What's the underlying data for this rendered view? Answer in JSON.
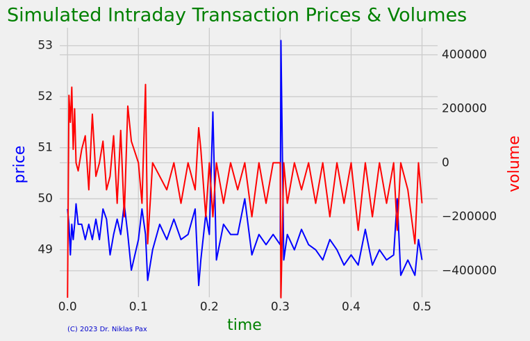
{
  "chart_data": {
    "type": "line",
    "title": "Simulated Intraday Transaction Prices & Volumes",
    "xlabel": "time",
    "ylabel": "price",
    "y2label": "volume",
    "footnote": "(C) 2023 Dr. Niklas Pax",
    "grid": true,
    "x": [
      0.0,
      0.002,
      0.004,
      0.006,
      0.008,
      0.01,
      0.012,
      0.015,
      0.02,
      0.025,
      0.03,
      0.035,
      0.04,
      0.045,
      0.05,
      0.055,
      0.06,
      0.065,
      0.07,
      0.075,
      0.08,
      0.085,
      0.09,
      0.1,
      0.105,
      0.11,
      0.113,
      0.12,
      0.13,
      0.14,
      0.15,
      0.16,
      0.17,
      0.18,
      0.185,
      0.188,
      0.195,
      0.2,
      0.205,
      0.21,
      0.22,
      0.23,
      0.24,
      0.25,
      0.26,
      0.27,
      0.28,
      0.29,
      0.3,
      0.301,
      0.305,
      0.31,
      0.32,
      0.33,
      0.34,
      0.35,
      0.36,
      0.37,
      0.38,
      0.39,
      0.4,
      0.41,
      0.42,
      0.43,
      0.44,
      0.45,
      0.46,
      0.465,
      0.47,
      0.48,
      0.49,
      0.495,
      0.5
    ],
    "series": [
      {
        "name": "price",
        "color": "#0000ff",
        "axis": "y",
        "values": [
          49.8,
          49.5,
          48.9,
          49.5,
          49.2,
          49.5,
          49.9,
          49.5,
          49.5,
          49.2,
          49.5,
          49.2,
          49.6,
          49.2,
          49.8,
          49.6,
          48.9,
          49.3,
          49.6,
          49.3,
          49.9,
          49.3,
          48.6,
          49.2,
          49.8,
          49.3,
          48.4,
          49.0,
          49.5,
          49.2,
          49.6,
          49.2,
          49.3,
          49.8,
          48.3,
          48.8,
          49.7,
          49.3,
          51.7,
          48.8,
          49.5,
          49.3,
          49.3,
          50.0,
          48.9,
          49.3,
          49.1,
          49.3,
          49.1,
          53.1,
          48.8,
          49.3,
          49.0,
          49.4,
          49.1,
          49.0,
          48.8,
          49.2,
          49.0,
          48.7,
          48.9,
          48.7,
          49.4,
          48.7,
          49.0,
          48.8,
          48.9,
          50.0,
          48.5,
          48.8,
          48.5,
          49.2,
          48.8
        ]
      },
      {
        "name": "volume",
        "color": "#ff0000",
        "axis": "y2",
        "values": [
          -500000,
          250000,
          150000,
          280000,
          50000,
          200000,
          0,
          -30000,
          50000,
          100000,
          -100000,
          180000,
          -50000,
          0,
          80000,
          -100000,
          -50000,
          100000,
          -150000,
          120000,
          -200000,
          210000,
          80000,
          0,
          -150000,
          290000,
          -300000,
          0,
          -50000,
          -100000,
          0,
          -150000,
          0,
          -100000,
          130000,
          50000,
          -200000,
          0,
          -200000,
          0,
          -150000,
          0,
          -100000,
          0,
          -200000,
          0,
          -150000,
          0,
          0,
          -500000,
          0,
          -150000,
          0,
          -100000,
          0,
          -150000,
          0,
          -200000,
          0,
          -150000,
          0,
          -250000,
          0,
          -200000,
          0,
          -150000,
          0,
          -250000,
          0,
          -100000,
          -300000,
          0,
          -150000
        ]
      }
    ],
    "xlim": [
      -0.011,
      0.522
    ],
    "xticks": [
      {
        "value": 0,
        "label": "0.0"
      },
      0.1,
      0.2,
      0.3,
      0.4,
      0.5
    ],
    "ylim": [
      48.07,
      53.35
    ],
    "yticks": [
      49,
      50,
      51,
      52,
      53
    ],
    "y2lim": [
      -498000,
      500000
    ],
    "y2ticks": [
      {
        "value": -400000,
        "label": "−400000"
      },
      {
        "value": -200000,
        "label": "−200000"
      },
      0,
      200000,
      400000
    ]
  }
}
